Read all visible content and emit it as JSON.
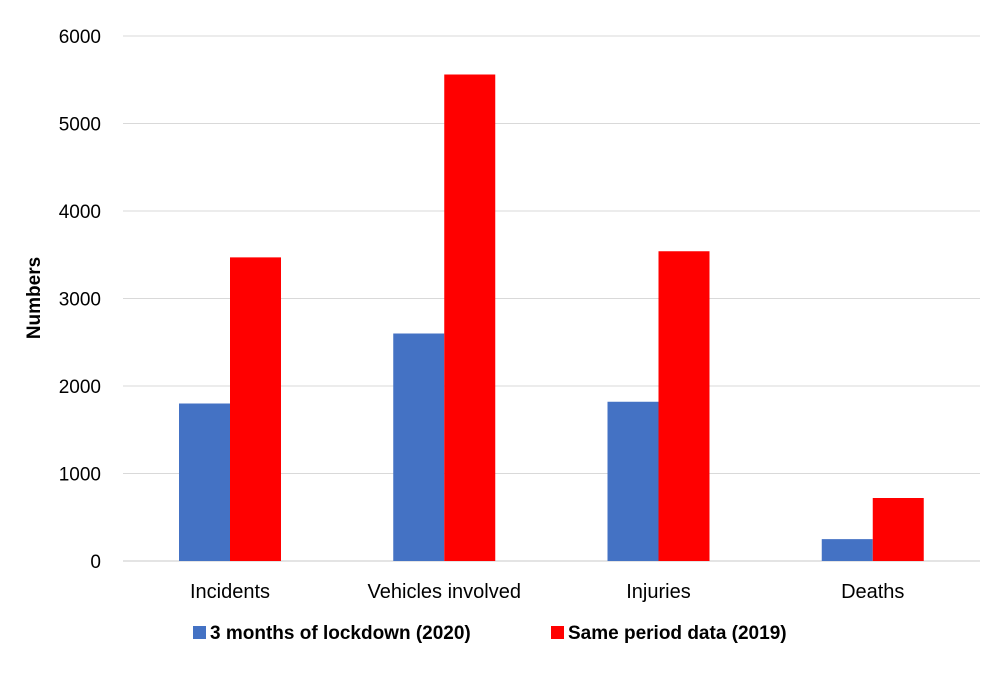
{
  "chart_data": {
    "type": "bar",
    "title": "",
    "xlabel": "",
    "ylabel": "Numbers",
    "ylim": [
      0,
      6000
    ],
    "yticks": [
      0,
      1000,
      2000,
      3000,
      4000,
      5000,
      6000
    ],
    "grid": true,
    "legend_position": "bottom",
    "categories": [
      "Incidents",
      "Vehicles involved",
      "Injuries",
      "Deaths"
    ],
    "series": [
      {
        "name": "3 months of lockdown (2020)",
        "color": "#4472C4",
        "values": [
          1800,
          2600,
          1820,
          250
        ]
      },
      {
        "name": "Same period data (2019)",
        "color": "#FF0000",
        "values": [
          3470,
          5560,
          3540,
          720
        ]
      }
    ]
  }
}
